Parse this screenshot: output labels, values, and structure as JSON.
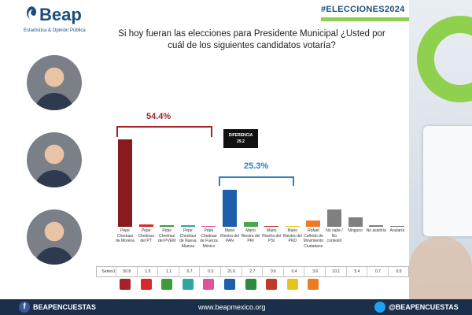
{
  "brand": {
    "name": "Beap",
    "tagline": "Estadística & Opinión Pública",
    "hashtag": "#ELECCIONES2024",
    "facebook": "BEAPENCUESTAS",
    "website": "www.beapmexico.org",
    "twitter": "@BEAPENCUESTAS"
  },
  "chart_data": {
    "type": "bar",
    "title": "Si hoy fueran las elecciones para Presidente Municipal ¿Usted por cuál de los siguientes candidatos votaría?",
    "series_name": "Series1",
    "categories": [
      "Pepe Chedraui de Morena",
      "Pepe Chedraui del PT",
      "Pepe Chedraui del PVEM",
      "Pepe Chedraui de Nueva Alianza",
      "Pepe Chedraui de Fuerza México",
      "Mario Riestra del PAN",
      "Mario Riestra del PRI",
      "Mario Riestra del PSI",
      "Mario Riestra del PRD",
      "Rafael Cañedo de Movimiento Ciudadano",
      "No sabe / No contestó",
      "Ninguno",
      "No asistiría",
      "Anularía"
    ],
    "values": [
      50.8,
      1.5,
      1.1,
      0.7,
      0.3,
      21.6,
      2.7,
      0.6,
      0.4,
      3.6,
      10.1,
      5.4,
      0.7,
      0.5
    ],
    "value_labels": [
      "50.8",
      "1.5",
      "1.1",
      "0.7",
      "0.3",
      "21.6",
      "2.7",
      "0.6",
      "0.4",
      "3.6",
      "10.1",
      "5.4",
      "0.7",
      "0.5"
    ],
    "colors": [
      "#8b1a1f",
      "#d62a2a",
      "#3d9c3a",
      "#2fa6a0",
      "#e05597",
      "#1f5ea8",
      "#4aa84a",
      "#c0392b",
      "#e8c21e",
      "#f07c22",
      "#7f7f7f",
      "#7f7f7f",
      "#7f7f7f",
      "#7f7f7f"
    ],
    "ylim": [
      0,
      55
    ],
    "annotations": {
      "group_red": "54.4%",
      "group_blue": "25.3%",
      "difference_label": "DIFERENCIA",
      "difference_value": "29.2"
    }
  },
  "party_logos": [
    "morena-logo",
    "pt-logo",
    "pvem-logo",
    "nueva-alianza-logo",
    "fuerza-mexico-logo",
    "pan-logo",
    "pri-logo",
    "psi-logo",
    "prd-logo",
    "mc-logo"
  ],
  "party_logo_colors": [
    "#a82228",
    "#d62a2a",
    "#3d9c3a",
    "#2fa6a0",
    "#e05597",
    "#1f5ea8",
    "#2e8b3d",
    "#c0392b",
    "#e8c21e",
    "#f07c22"
  ]
}
